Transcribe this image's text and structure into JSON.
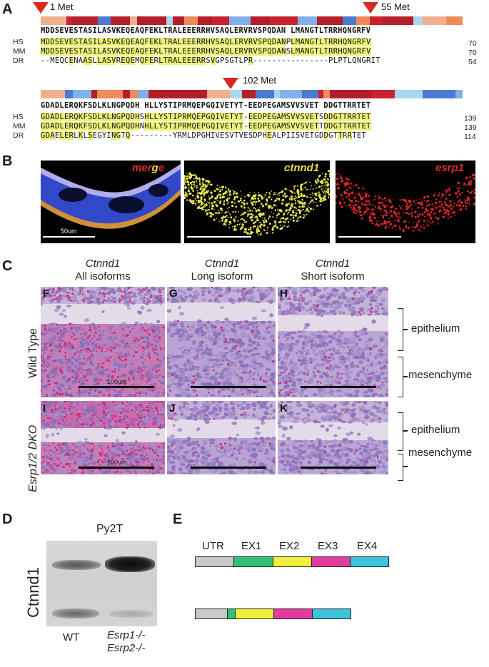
{
  "panel_letters": {
    "a": "A",
    "b": "B",
    "c": "C",
    "d": "D",
    "e": "E"
  },
  "panelA": {
    "markers": [
      "1 Met",
      "55 Met",
      "102 Met"
    ],
    "row_labels": [
      "HS",
      "MM",
      "DR"
    ],
    "block1": {
      "consensus": "MDDSEVESTASILASVKEQEAQFEKLTRALEEERRHVSAQLERVRVSPQDAN LMANGTLTRRHQNGRFV",
      "hs": "MDDSEVESTASILASVKEQEAQFEKLTRALEEERRHVSAQLERVRVSPQDANPLMANGTLTRRHQNGRFV",
      "mm": "MDDSEVESTASILASVKEQEAQFEKLTRALEEERRHVSAQLERVRVSPQDANSLMANGTLTRRHQNGRFV",
      "dr": "--MEQCENAASLLASVREQEMQFERLTRALEEERRSVGPSGTLPR----------------PLPTLQNGRIT",
      "ends": [
        "70",
        "70",
        "54"
      ]
    },
    "block2": {
      "consensus": "GDADLERQKFSDLKLNGPQDH HLLYSTIPRMQEPGQIVETYT-EEDPEGAMSVVSVET DDGTTRRTET",
      "hs": "GDADLERQKFSDLKLNGPQDHSHLLYSTIPRMQEPGQIVETYT-EEDPEGAMSVVSVETSDDGTTRRTET",
      "mm": "GDADLERQKFSDLKLNGPQDHNHLLYSTIPRMQEPGQIVETYT-EEDPEGAMSVVSVETTDDGTTRRTET",
      "dr": "GDAELERLKLSEGYINGTQ---------YRMLDPGHIVESVTVESDPHEALPIISVETGDDGTTRRTET",
      "ends": [
        "139",
        "139",
        "114"
      ]
    }
  },
  "panelB": {
    "titles": {
      "merge_m": "m",
      "merge_e1": "e",
      "merge_r": "r",
      "merge_g": "g",
      "merge_e2": "e",
      "ctnnd1": "ctnnd1",
      "esrp1": "esrp1"
    },
    "scale_label": "50um"
  },
  "panelC": {
    "columns": [
      {
        "gene": "Ctnnd1",
        "desc": "All isoforms"
      },
      {
        "gene": "Ctnnd1",
        "desc": "Long isoform"
      },
      {
        "gene": "Ctnnd1",
        "desc": "Short isoform"
      }
    ],
    "sub_letters": [
      "F",
      "G",
      "H",
      "I",
      "J",
      "K"
    ],
    "row_labels": [
      "Wild Type",
      "Esrp1/2 DKO"
    ],
    "tissue_labels": [
      "epithelium",
      "mesenchyme",
      "epithelium",
      "mesenchyme"
    ],
    "scale_labels": [
      "100um",
      "100um"
    ]
  },
  "panelD": {
    "title": "Py2T",
    "ylabel": "Ctnnd1",
    "lanes": [
      "WT",
      "Esrp1-/-",
      "Esrp2-/-"
    ]
  },
  "panelE": {
    "labels": [
      "UTR",
      "EX1",
      "EX2",
      "EX3",
      "EX4"
    ],
    "colors": {
      "utr": "#c8c8c8",
      "ex1": "#2ec27a",
      "ex2": "#f2ef3c",
      "ex3": "#e53aa0",
      "ex4": "#3cc3dd"
    }
  }
}
